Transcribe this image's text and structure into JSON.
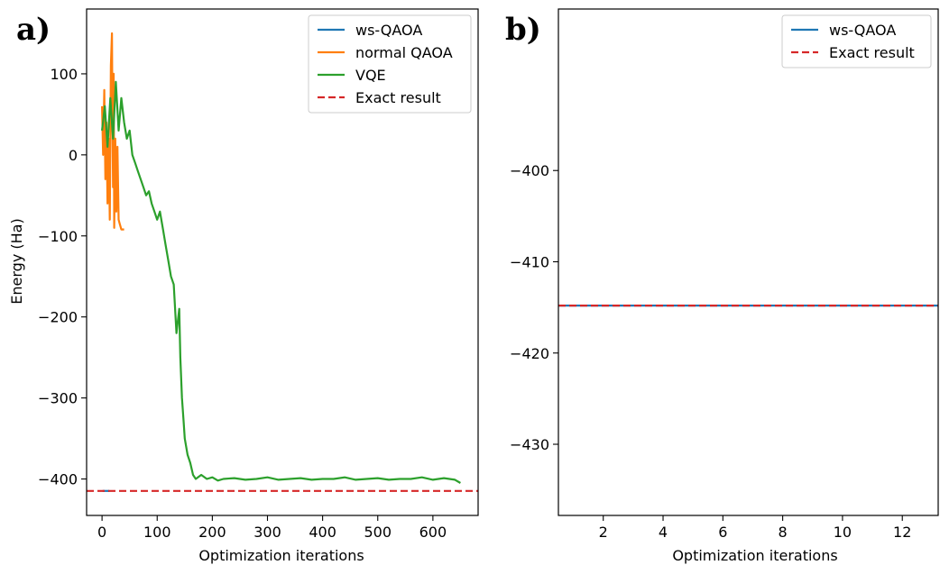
{
  "chart_data": [
    {
      "panel_label": "a)",
      "type": "line",
      "xlabel": "Optimization iterations",
      "ylabel": "Energy (Ha)",
      "xlim": [
        -28,
        682
      ],
      "ylim": [
        -445,
        180
      ],
      "xticks": [
        0,
        100,
        200,
        300,
        400,
        500,
        600
      ],
      "yticks": [
        -400,
        -300,
        -200,
        -100,
        0,
        100
      ],
      "legend_position": "top-right",
      "series": [
        {
          "name": "ws-QAOA",
          "color": "#1f77b4",
          "style": "solid",
          "x": [
            1,
            13
          ],
          "y": [
            -414.8,
            -414.8
          ]
        },
        {
          "name": "normal QAOA",
          "color": "#ff7f0e",
          "style": "solid",
          "x": [
            0,
            2,
            4,
            6,
            8,
            10,
            12,
            14,
            16,
            18,
            19,
            20,
            21,
            22,
            24,
            26,
            28,
            30,
            32,
            35,
            40
          ],
          "y": [
            60,
            0,
            80,
            -30,
            40,
            -60,
            20,
            -80,
            110,
            150,
            40,
            -40,
            100,
            -90,
            20,
            -70,
            10,
            -80,
            -85,
            -92,
            -92
          ]
        },
        {
          "name": "VQE",
          "color": "#2ca02c",
          "style": "solid",
          "x": [
            0,
            5,
            10,
            15,
            20,
            25,
            30,
            35,
            40,
            45,
            50,
            55,
            60,
            65,
            70,
            75,
            80,
            85,
            90,
            95,
            100,
            105,
            110,
            115,
            120,
            125,
            130,
            135,
            140,
            142,
            145,
            148,
            150,
            155,
            160,
            165,
            170,
            180,
            190,
            200,
            210,
            220,
            240,
            260,
            280,
            300,
            320,
            340,
            360,
            380,
            400,
            420,
            440,
            460,
            480,
            500,
            520,
            540,
            560,
            580,
            600,
            620,
            640,
            650
          ],
          "y": [
            30,
            60,
            10,
            70,
            20,
            90,
            30,
            70,
            40,
            20,
            30,
            0,
            -10,
            -20,
            -30,
            -40,
            -50,
            -45,
            -60,
            -70,
            -80,
            -70,
            -90,
            -110,
            -130,
            -150,
            -160,
            -220,
            -190,
            -250,
            -300,
            -330,
            -350,
            -370,
            -380,
            -395,
            -400,
            -395,
            -400,
            -398,
            -402,
            -400,
            -399,
            -401,
            -400,
            -398,
            -401,
            -400,
            -399,
            -401,
            -400,
            -400,
            -398,
            -401,
            -400,
            -399,
            -401,
            -400,
            -400,
            -398,
            -401,
            -399,
            -401,
            -405
          ]
        },
        {
          "name": "Exact result",
          "color": "#d62728",
          "style": "dashed",
          "x": [
            -28,
            682
          ],
          "y": [
            -414.8,
            -414.8
          ]
        }
      ]
    },
    {
      "panel_label": "b)",
      "type": "line",
      "xlabel": "Optimization iterations",
      "ylabel": "",
      "xlim": [
        0.5,
        13.2
      ],
      "ylim": [
        -437.8,
        -382.3
      ],
      "xticks": [
        2,
        4,
        6,
        8,
        10,
        12
      ],
      "yticks": [
        -430,
        -420,
        -410,
        -400
      ],
      "legend_position": "top-right",
      "series": [
        {
          "name": "ws-QAOA",
          "color": "#1f77b4",
          "style": "solid",
          "x": [
            0.5,
            13.2
          ],
          "y": [
            -414.8,
            -414.8
          ]
        },
        {
          "name": "Exact result",
          "color": "#d62728",
          "style": "dashed",
          "x": [
            0.5,
            13.2
          ],
          "y": [
            -414.8,
            -414.8
          ]
        }
      ]
    }
  ]
}
